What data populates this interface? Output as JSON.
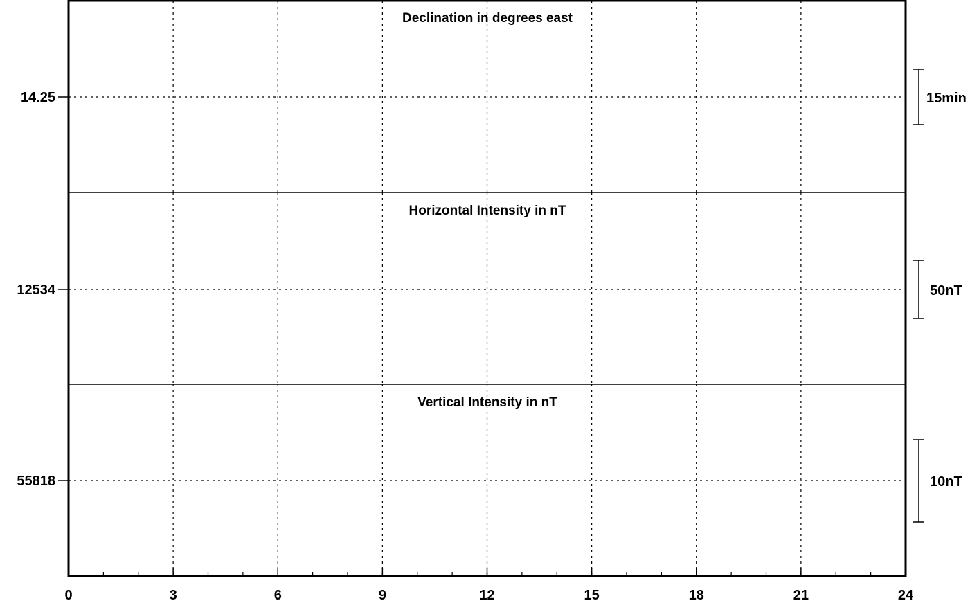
{
  "chart_data": {
    "type": "line",
    "x_ticks": [
      "0",
      "3",
      "6",
      "9",
      "12",
      "15",
      "18",
      "21",
      "24"
    ],
    "xlim": [
      0,
      24
    ],
    "x_minor_step": 1,
    "grid": true,
    "panels": [
      {
        "title": "Declination in degrees east",
        "baseline_label": "14.25",
        "scale_label": "15min",
        "series": []
      },
      {
        "title": "Horizontal Intensity in nT",
        "baseline_label": "12534",
        "scale_label": "50nT",
        "series": []
      },
      {
        "title": "Vertical Intensity in nT",
        "baseline_label": "55818",
        "scale_label": "10nT",
        "series": []
      }
    ]
  },
  "colors": {
    "axis": "#000000",
    "grid": "#000000",
    "background": "#ffffff"
  }
}
